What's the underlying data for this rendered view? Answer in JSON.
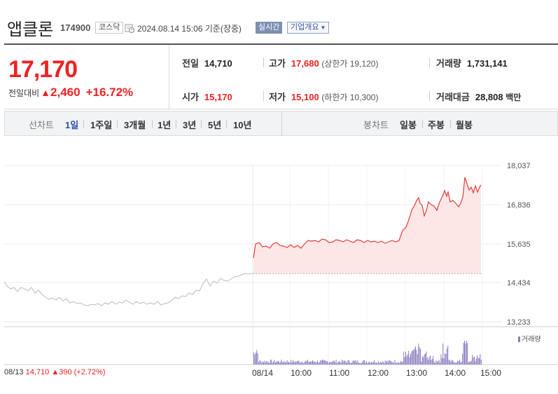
{
  "header": {
    "stock_name": "앱클론",
    "stock_code": "174900",
    "market": "코스닥",
    "datetime": "2024.08.14 15:06 기준(장중)",
    "realtime_label": "실시간",
    "overview_label": "기업개요"
  },
  "summary": {
    "price": "17,170",
    "change_label": "전일대비",
    "change_value": "2,460",
    "change_pct": "+16.72%",
    "prev_label": "전일",
    "prev_value": "14,710",
    "open_label": "시가",
    "open_value": "15,170",
    "high_label": "고가",
    "high_value": "17,680",
    "upper_limit": "(상한가 19,120)",
    "low_label": "저가",
    "low_value": "15,100",
    "lower_limit": "(하한가 10,300)",
    "volume_label": "거래량",
    "volume_value": "1,731,141",
    "amount_label": "거래대금",
    "amount_value": "28,808",
    "amount_unit": "백만"
  },
  "tabs": {
    "line_label": "선차트",
    "line_items": [
      "1일",
      "1주일",
      "3개월",
      "1년",
      "3년",
      "5년",
      "10년"
    ],
    "active": "1일",
    "candle_label": "봉차트",
    "candle_items": [
      "일봉",
      "주봉",
      "월봉"
    ]
  },
  "chart": {
    "y_ticks": [
      "18,037",
      "16,836",
      "15,635",
      "14,434",
      "13,233"
    ],
    "x_ticks": [
      "08/14",
      "10:00",
      "11:00",
      "12:00",
      "13:00",
      "14:00",
      "15:00"
    ],
    "volume_legend": "거래량",
    "colors": {
      "up": "#e33b3b",
      "prev": "#bbbbbb",
      "volume": "#8c7bc0",
      "fill": "#fde3e3"
    }
  },
  "footer": {
    "date": "08/13",
    "close": "14,710",
    "change": "390 (+2.72%)"
  }
}
